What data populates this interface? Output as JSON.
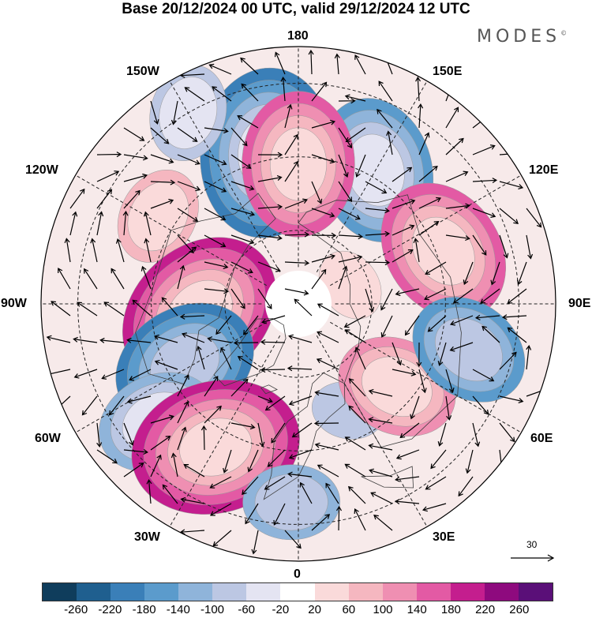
{
  "header": {
    "title": "Base 20/12/2024 00 UTC, valid 29/12/2024 12 UTC",
    "brand": "MODES",
    "brand_mark": "©"
  },
  "map": {
    "projection": "north-polar-stereographic",
    "longitude_labels": {
      "top": "180",
      "bottom": "0",
      "left": "90W",
      "right": "90E",
      "upper_left": "150W",
      "upper_right": "150E",
      "mid_upper_left": "120W",
      "mid_upper_right": "120E",
      "lower_left": "60W",
      "lower_right": "60E",
      "bottom_left": "30W",
      "bottom_right": "30E"
    },
    "anomaly_centers": [
      {
        "name": "aleutian-low",
        "value": -200,
        "lon": -168,
        "lat": 48
      },
      {
        "name": "east-asia-low",
        "value": -160,
        "lon": 150,
        "lat": 48
      },
      {
        "name": "north-pacific-high",
        "value": 180,
        "lon": 180,
        "lat": 52
      },
      {
        "name": "siberian-high",
        "value": 160,
        "lon": 110,
        "lat": 48
      },
      {
        "name": "west-canada-high",
        "value": 100,
        "lon": -122,
        "lat": 45
      },
      {
        "name": "canada-high",
        "value": 200,
        "lon": -85,
        "lat": 63
      },
      {
        "name": "labrador-low",
        "value": -180,
        "lon": -62,
        "lat": 55
      },
      {
        "name": "atlantic-low",
        "value": -120,
        "lon": -50,
        "lat": 40
      },
      {
        "name": "north-atlantic-high",
        "value": 220,
        "lon": -30,
        "lat": 45
      },
      {
        "name": "iberian-low",
        "value": -100,
        "lon": -2,
        "lat": 36
      },
      {
        "name": "east-europe-low",
        "value": -60,
        "lon": 25,
        "lat": 58
      },
      {
        "name": "central-asia-high",
        "value": 140,
        "lon": 50,
        "lat": 55
      },
      {
        "name": "west-siberia-low",
        "value": -140,
        "lon": 75,
        "lat": 42
      },
      {
        "name": "arctic-high",
        "value": 60,
        "lon": 110,
        "lat": 75
      },
      {
        "name": "pacific-east-low",
        "value": -80,
        "lon": -150,
        "lat": 30
      }
    ]
  },
  "reference_vector": {
    "label": "30"
  },
  "colorbar": {
    "colors": [
      "#0f3d5c",
      "#1f5f8f",
      "#3a7fb8",
      "#5b9bcc",
      "#8fb4da",
      "#bcc7e3",
      "#e4e4f2",
      "#ffffff",
      "#fadada",
      "#f5b7c0",
      "#ef8fb2",
      "#e35aa4",
      "#c41e8e",
      "#8e0a7e",
      "#5a0f78"
    ],
    "labels": [
      "-260",
      "-220",
      "-180",
      "-140",
      "-100",
      "-60",
      "-20",
      "20",
      "60",
      "100",
      "140",
      "180",
      "220",
      "260"
    ]
  }
}
